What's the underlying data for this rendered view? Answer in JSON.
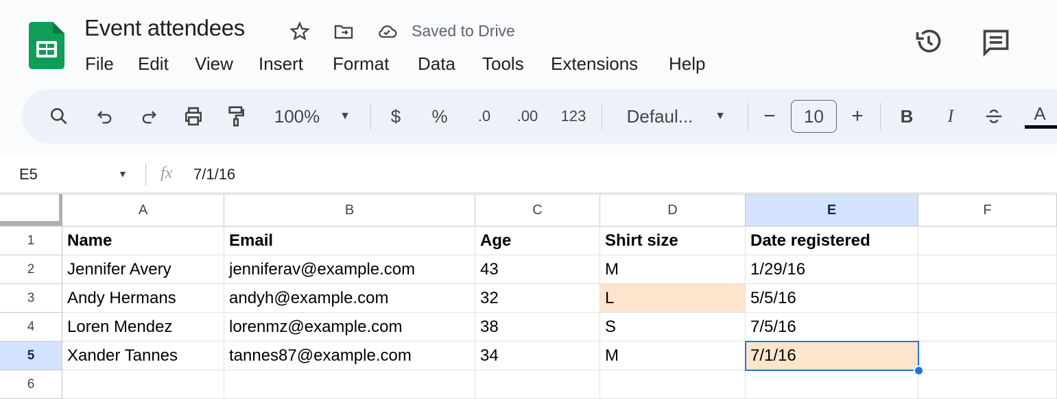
{
  "doc": {
    "title": "Event attendees",
    "save_status": "Saved to Drive"
  },
  "menu": [
    "File",
    "Edit",
    "View",
    "Insert",
    "Format",
    "Data",
    "Tools",
    "Extensions",
    "Help"
  ],
  "toolbar": {
    "zoom": "100%",
    "currency": "$",
    "percent": "%",
    "dec_decrease": ".0",
    "dec_increase": ".00",
    "more_formats": "123",
    "font": "Defaul...",
    "font_size": "10",
    "bold": "B",
    "italic": "I",
    "text_color": "A"
  },
  "formula_bar": {
    "name_box": "E5",
    "fx": "fx",
    "value": "7/1/16"
  },
  "columns": [
    "A",
    "B",
    "C",
    "D",
    "E",
    "F"
  ],
  "rows": [
    {
      "num": "1",
      "cells": [
        "Name",
        "Email",
        "Age",
        "Shirt size",
        "Date registered",
        ""
      ]
    },
    {
      "num": "2",
      "cells": [
        "Jennifer Avery",
        "jenniferav@example.com",
        "43",
        "M",
        "1/29/16",
        ""
      ]
    },
    {
      "num": "3",
      "cells": [
        "Andy Hermans",
        "andyh@example.com",
        "32",
        "L",
        "5/5/16",
        ""
      ]
    },
    {
      "num": "4",
      "cells": [
        "Loren Mendez",
        "lorenmz@example.com",
        "38",
        "S",
        "7/5/16",
        ""
      ]
    },
    {
      "num": "5",
      "cells": [
        "Xander Tannes",
        "tannes87@example.com",
        "34",
        "M",
        "7/1/16",
        ""
      ]
    },
    {
      "num": "6",
      "cells": [
        "",
        "",
        "",
        "",
        "",
        ""
      ]
    }
  ],
  "selected_cell": "E5",
  "colors": {
    "highlight_fill": "#fde5cd",
    "selection": "#1a73e8",
    "header_selected": "#d3e3fd",
    "sheets_green": "#0f9d58"
  }
}
